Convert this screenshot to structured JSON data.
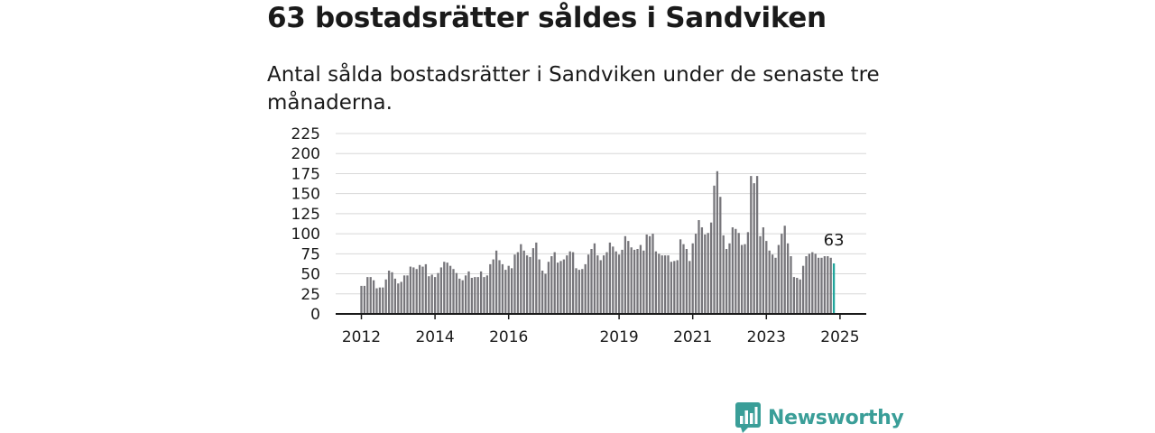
{
  "header": {
    "title": "63 bostadsrätter såldes i Sandviken",
    "subtitle": "Antal sålda bostadsrätter i Sandviken under de senaste tre månaderna."
  },
  "brand": {
    "name": "Newsworthy",
    "logo_icon": "newsworthy-bar-chart-icon"
  },
  "colors": {
    "bar": "#77767b",
    "highlight": "#21a59b",
    "grid": "#d8d8d8",
    "axis": "#1a1a1a",
    "brand": "#3a9e98"
  },
  "chart_data": {
    "type": "bar",
    "title": "63 bostadsrätter såldes i Sandviken",
    "subtitle": "Antal sålda bostadsrätter i Sandviken under de senaste tre månaderna.",
    "x_start": "2012-01",
    "frequency": "monthly",
    "ylim": [
      0,
      225
    ],
    "yticks": [
      0,
      25,
      50,
      75,
      100,
      125,
      150,
      175,
      200,
      225
    ],
    "xtick_labels": [
      "2012",
      "2014",
      "2016",
      "2019",
      "2021",
      "2023",
      "2025"
    ],
    "grid": true,
    "highlight_last": true,
    "last_label": "63",
    "values": [
      35,
      35,
      46,
      46,
      42,
      32,
      33,
      33,
      43,
      54,
      52,
      44,
      38,
      40,
      48,
      48,
      59,
      58,
      56,
      61,
      59,
      62,
      47,
      49,
      46,
      51,
      58,
      65,
      64,
      60,
      56,
      51,
      44,
      42,
      48,
      53,
      45,
      46,
      46,
      53,
      46,
      48,
      62,
      68,
      79,
      67,
      62,
      55,
      60,
      57,
      74,
      77,
      87,
      79,
      73,
      71,
      82,
      89,
      68,
      54,
      50,
      65,
      72,
      77,
      64,
      66,
      68,
      73,
      78,
      77,
      57,
      55,
      56,
      62,
      74,
      81,
      88,
      73,
      67,
      73,
      77,
      89,
      84,
      78,
      74,
      80,
      97,
      91,
      83,
      80,
      81,
      86,
      79,
      99,
      97,
      100,
      78,
      75,
      73,
      73,
      73,
      65,
      66,
      67,
      93,
      87,
      81,
      66,
      88,
      100,
      117,
      108,
      99,
      101,
      114,
      160,
      178,
      146,
      98,
      81,
      88,
      108,
      106,
      101,
      86,
      87,
      102,
      172,
      163,
      172,
      97,
      108,
      91,
      79,
      74,
      70,
      86,
      100,
      110,
      88,
      72,
      46,
      45,
      43,
      60,
      72,
      75,
      77,
      75,
      70,
      70,
      72,
      72,
      70,
      63
    ]
  }
}
